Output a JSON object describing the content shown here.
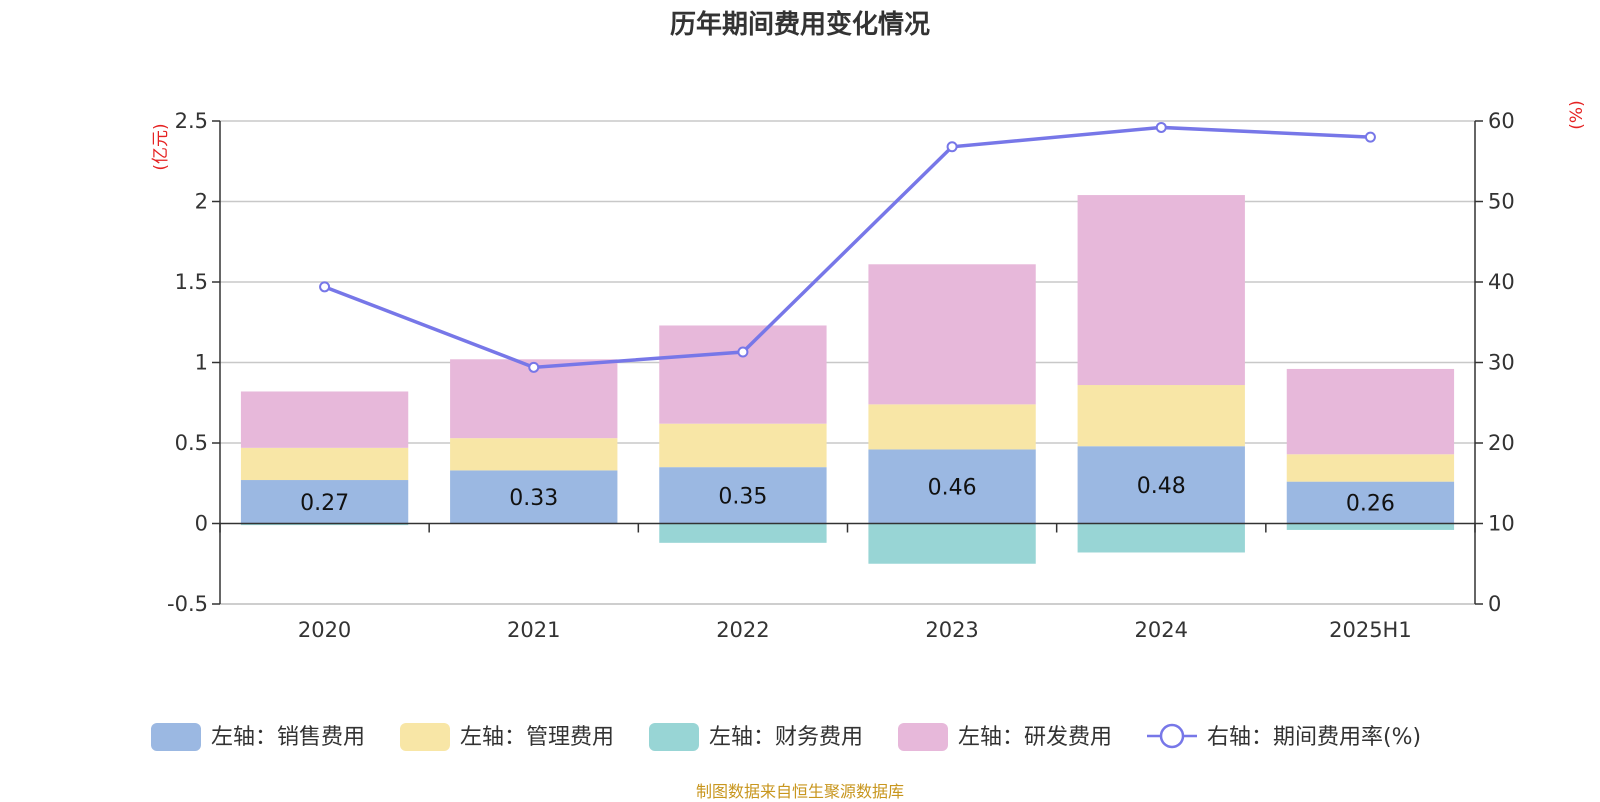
{
  "title": "历年期间费用变化情况",
  "source_note": "制图数据来自恒生聚源数据库",
  "chart_data": {
    "type": "bar",
    "stacked": true,
    "title": "历年期间费用变化情况",
    "categories": [
      "2020",
      "2021",
      "2022",
      "2023",
      "2024",
      "2025H1"
    ],
    "left_axis": {
      "unit": "(亿元)",
      "ylim": [
        -0.5,
        2.5
      ],
      "ticks": [
        -0.5,
        0,
        0.5,
        1,
        1.5,
        2,
        2.5
      ],
      "tick_labels": [
        "-0.5",
        "0",
        "0.5",
        "1",
        "1.5",
        "2",
        "2.5"
      ]
    },
    "right_axis": {
      "unit": "(%)",
      "ylim": [
        0,
        60
      ],
      "ticks": [
        0,
        10,
        20,
        30,
        40,
        50,
        60
      ],
      "tick_labels": [
        "0",
        "10",
        "20",
        "30",
        "40",
        "50",
        "60"
      ]
    },
    "grid": true,
    "legend_position": "bottom",
    "series": [
      {
        "name": "左轴：销售费用",
        "type": "bar",
        "axis": "left",
        "color": "#9bb8e2",
        "values": [
          0.27,
          0.33,
          0.35,
          0.46,
          0.48,
          0.26
        ],
        "labels": [
          "0.27",
          "0.33",
          "0.35",
          "0.46",
          "0.48",
          "0.26"
        ]
      },
      {
        "name": "左轴：管理费用",
        "type": "bar",
        "axis": "left",
        "color": "#f8e6a6",
        "values": [
          0.2,
          0.2,
          0.27,
          0.28,
          0.38,
          0.17
        ]
      },
      {
        "name": "左轴：财务费用",
        "type": "bar",
        "axis": "left",
        "color": "#98d5d5",
        "values": [
          -0.01,
          0.0,
          -0.12,
          -0.25,
          -0.18,
          -0.04
        ]
      },
      {
        "name": "左轴：研发费用",
        "type": "bar",
        "axis": "left",
        "color": "#e7b8da",
        "values": [
          0.35,
          0.49,
          0.61,
          0.87,
          1.18,
          0.53
        ]
      },
      {
        "name": "右轴：期间费用率(%)",
        "type": "line",
        "axis": "right",
        "color": "#7777e8",
        "values": [
          39.4,
          29.4,
          31.3,
          56.8,
          59.2,
          58.0
        ]
      }
    ]
  }
}
